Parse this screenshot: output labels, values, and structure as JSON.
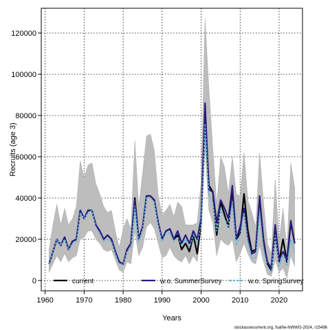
{
  "chart_data": {
    "type": "line",
    "xlabel": "Years",
    "ylabel": "Recruits (age 3)",
    "xlim": [
      1959,
      2026
    ],
    "ylim": [
      -5000,
      132000
    ],
    "xticks": [
      1960,
      1970,
      1980,
      1990,
      2000,
      2010,
      2020
    ],
    "yticks": [
      0,
      20000,
      40000,
      60000,
      80000,
      100000,
      120000
    ],
    "grid": true,
    "legend_position": "bottom",
    "footer": "stockassessment.org, fsalhe-NWWG-2024, r15496",
    "x": [
      1961,
      1962,
      1963,
      1964,
      1965,
      1966,
      1967,
      1968,
      1969,
      1970,
      1971,
      1972,
      1973,
      1974,
      1975,
      1976,
      1977,
      1978,
      1979,
      1980,
      1981,
      1982,
      1983,
      1984,
      1985,
      1986,
      1987,
      1988,
      1989,
      1990,
      1991,
      1992,
      1993,
      1994,
      1995,
      1996,
      1997,
      1998,
      1999,
      2000,
      2001,
      2002,
      2003,
      2004,
      2005,
      2006,
      2007,
      2008,
      2009,
      2010,
      2011,
      2012,
      2013,
      2014,
      2015,
      2016,
      2017,
      2018,
      2019,
      2020,
      2021,
      2022,
      2023,
      2024
    ],
    "confidence_band": {
      "lower": [
        4000,
        8000,
        12000,
        9000,
        13000,
        9000,
        11000,
        12000,
        20000,
        21000,
        24000,
        24000,
        20000,
        18000,
        15000,
        14000,
        15000,
        10000,
        5000,
        4000,
        9000,
        8000,
        24000,
        12000,
        16000,
        26000,
        28000,
        25000,
        18000,
        11000,
        12000,
        16000,
        12000,
        10000,
        9000,
        12000,
        8000,
        12000,
        9000,
        26000,
        64000,
        34000,
        28000,
        12000,
        20000,
        18000,
        17000,
        20000,
        9000,
        13000,
        18000,
        13000,
        9000,
        8000,
        17000,
        9000,
        3000,
        2000,
        10000,
        4000,
        6000,
        1000,
        12000,
        7000
      ],
      "upper": [
        15000,
        27000,
        37000,
        27000,
        35000,
        27000,
        30000,
        36000,
        58000,
        50000,
        56000,
        57000,
        47000,
        42000,
        36000,
        33000,
        34000,
        24000,
        16000,
        25000,
        30000,
        25000,
        68000,
        36000,
        52000,
        70000,
        71000,
        63000,
        41000,
        32000,
        34000,
        37000,
        31000,
        38000,
        36000,
        27000,
        27000,
        27000,
        28000,
        48000,
        127000,
        93000,
        64000,
        37000,
        60000,
        55000,
        42000,
        60000,
        42000,
        41000,
        62000,
        39000,
        33000,
        26000,
        62000,
        38000,
        18000,
        13000,
        49000,
        19000,
        35000,
        15000,
        57000,
        45000
      ]
    },
    "series": [
      {
        "name": "current",
        "color": "#000000",
        "dash": "solid",
        "values": [
          8000,
          14000,
          20000,
          17000,
          21000,
          15000,
          19000,
          20000,
          34000,
          30000,
          34000,
          34000,
          27000,
          24000,
          20000,
          22000,
          20000,
          14000,
          9000,
          8000,
          15000,
          18000,
          40000,
          20000,
          26000,
          41000,
          41000,
          39000,
          28000,
          20000,
          24000,
          25000,
          20000,
          22000,
          15000,
          18000,
          14000,
          22000,
          13000,
          28000,
          80000,
          46000,
          43000,
          22000,
          38000,
          32000,
          26000,
          44000,
          20000,
          23000,
          42000,
          24000,
          14000,
          15000,
          40000,
          20000,
          8000,
          5000,
          23000,
          9000,
          20000,
          9000,
          28000,
          18000
        ]
      },
      {
        "name": "w.o. SummerSurvey",
        "color": "#2a1a7a",
        "dash": "solid",
        "values": [
          8000,
          14000,
          20000,
          17000,
          21000,
          15000,
          19000,
          20000,
          34000,
          30000,
          34000,
          34000,
          27000,
          24000,
          20000,
          22000,
          20000,
          14000,
          9000,
          8000,
          15000,
          18000,
          39000,
          20000,
          26000,
          41000,
          41000,
          39000,
          28000,
          20000,
          24000,
          25000,
          20000,
          24000,
          18000,
          22000,
          18000,
          24000,
          20000,
          30000,
          86000,
          44000,
          43000,
          28000,
          39000,
          35000,
          30000,
          46000,
          20000,
          26000,
          35000,
          21000,
          13000,
          14000,
          41000,
          19000,
          9000,
          6000,
          27000,
          10000,
          14000,
          10000,
          29000,
          18000
        ]
      },
      {
        "name": "w.o. SpringSurvey",
        "color": "#58b6dd",
        "dash": "dashed",
        "values": [
          8000,
          14000,
          20000,
          17000,
          20000,
          15000,
          18000,
          19000,
          33000,
          30000,
          33000,
          34000,
          26000,
          23000,
          19000,
          20000,
          19000,
          13000,
          8000,
          8000,
          14000,
          16000,
          36000,
          19000,
          25000,
          40000,
          40000,
          38000,
          27000,
          19000,
          23000,
          23000,
          19000,
          21000,
          17000,
          20000,
          16000,
          22000,
          18000,
          27000,
          76000,
          41000,
          38000,
          24000,
          35000,
          30000,
          26000,
          38000,
          17000,
          22000,
          33000,
          19000,
          11000,
          11000,
          33000,
          15000,
          7000,
          4000,
          22000,
          7000,
          12000,
          7000,
          20000,
          13000
        ]
      }
    ]
  }
}
